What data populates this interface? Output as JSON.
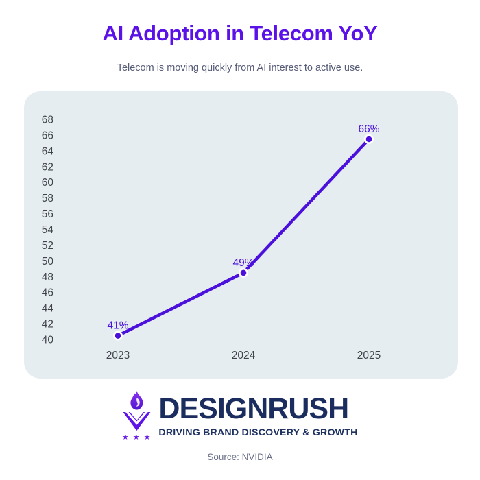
{
  "page": {
    "title": "AI Adoption in Telecom YoY",
    "subtitle": "Telecom is moving quickly from AI interest to active use.",
    "source": "Source: NVIDIA"
  },
  "chart_data": {
    "type": "line",
    "title": "AI Adoption in Telecom YoY",
    "subtitle": "Telecom is moving quickly from AI interest to active use.",
    "categories": [
      "2023",
      "2024",
      "2025"
    ],
    "values": [
      41,
      49,
      66
    ],
    "point_labels": [
      "41%",
      "49%",
      "66%"
    ],
    "xlabel": "",
    "ylabel": "",
    "ylim": [
      40,
      68
    ],
    "y_ticks": [
      40,
      42,
      44,
      46,
      48,
      50,
      52,
      54,
      56,
      58,
      60,
      62,
      64,
      66,
      68
    ],
    "grid": false,
    "legend": false,
    "source": "NVIDIA",
    "colors": {
      "line": "#4B10DC",
      "marker": "#4B10DC",
      "marker_ring": "#FFFFFF",
      "point_label": "#4B10DC",
      "tick_label": "#3F444B",
      "panel_background": "#E6EDF1"
    }
  },
  "branding": {
    "logo_text": "DESIGNRUSH",
    "logo_tagline": "DRIVING BRAND DISCOVERY & GROWTH",
    "logo_icon": "designrush-flame-v-stars-icon",
    "colors": {
      "navy": "#1B2D5F",
      "violet": "#5E13E8"
    }
  },
  "theme": {
    "title_color": "#5B12E8",
    "subtitle_color": "#575C77",
    "source_color": "#6A6F8A",
    "background": "#FFFFFF"
  }
}
